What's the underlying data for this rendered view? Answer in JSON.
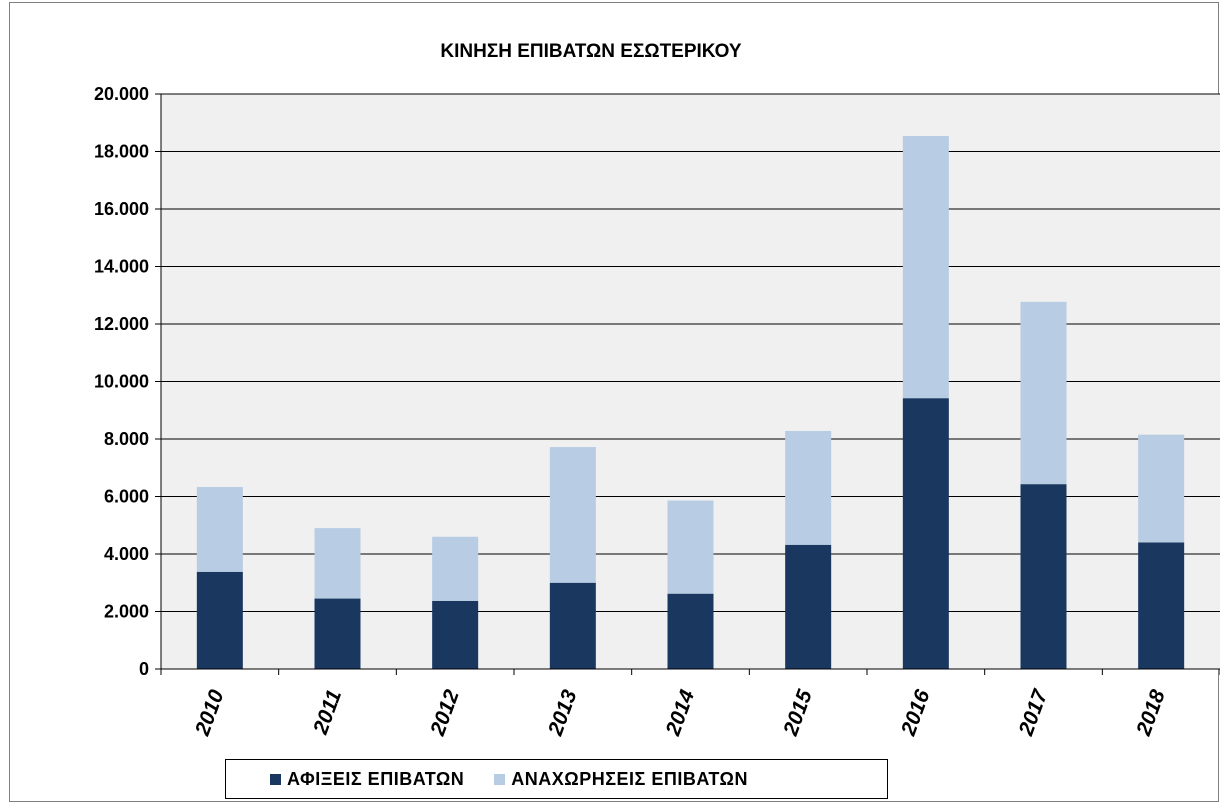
{
  "chart_data": {
    "type": "bar",
    "stacked": true,
    "title": "ΚΙΝΗΣΗ  ΕΠΙΒΑΤΩΝ  ΕΣΩΤΕΡΙΚΟΥ",
    "categories": [
      "2010",
      "2011",
      "2012",
      "2013",
      "2014",
      "2015",
      "2016",
      "2017",
      "2018"
    ],
    "series": [
      {
        "name": "ΑΦΙΞΕΙΣ  ΕΠΙΒΑΤΩΝ",
        "color": "#1a3760",
        "values": [
          3380,
          2450,
          2370,
          3000,
          2620,
          4320,
          9420,
          6430,
          4400
        ]
      },
      {
        "name": "ΑΝΑΧΩΡΗΣΕΙΣ  ΕΠΙΒΑΤΩΝ",
        "color": "#b8cce4",
        "values": [
          2950,
          2450,
          2230,
          4720,
          3240,
          3960,
          9120,
          6340,
          3750
        ]
      }
    ],
    "yticks": [
      "0",
      "2.000",
      "4.000",
      "6.000",
      "8.000",
      "10.000",
      "12.000",
      "14.000",
      "16.000",
      "18.000",
      "20.000"
    ],
    "ylim": [
      0,
      20000
    ],
    "grid": true,
    "plot_background": "#f0f0f0",
    "legend_position": "bottom"
  }
}
